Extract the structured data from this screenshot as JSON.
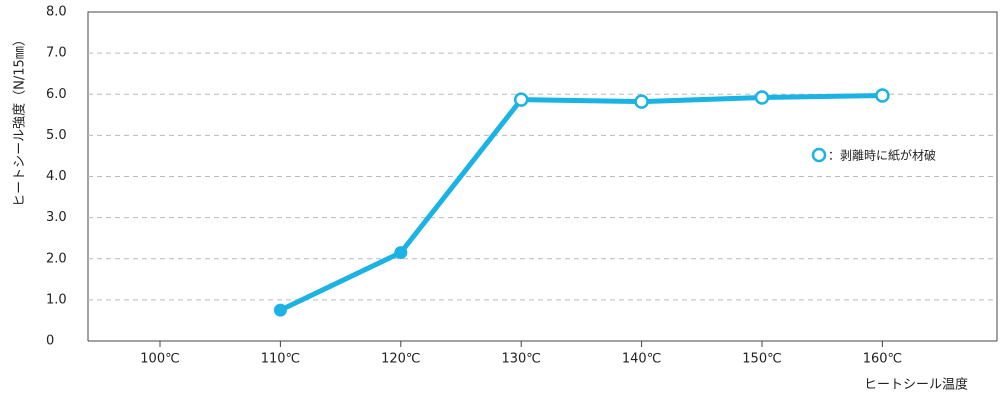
{
  "chart_data": {
    "type": "line",
    "y_label": "ヒートシール強度（N/15㎜）",
    "x_label": "ヒートシール温度",
    "categories": [
      "100℃",
      "110℃",
      "120℃",
      "130℃",
      "140℃",
      "150℃",
      "160℃"
    ],
    "series": [
      {
        "name": "：剥離時に紙が材破",
        "color": "#1ab3e3",
        "values": [
          null,
          0.75,
          2.15,
          5.87,
          5.82,
          5.92,
          5.97
        ],
        "hollow": [
          false,
          false,
          false,
          true,
          true,
          true,
          true
        ]
      }
    ],
    "ylim": [
      0,
      8
    ],
    "yticks": [
      0,
      {
        "value": 1,
        "label": "1.0"
      },
      {
        "value": 2,
        "label": "2.0"
      },
      {
        "value": 3,
        "label": "3.0"
      },
      {
        "value": 4,
        "label": "4.0"
      },
      {
        "value": 5,
        "label": "5.0"
      },
      {
        "value": 6,
        "label": "6.0"
      },
      {
        "value": 7,
        "label": "7.0"
      },
      {
        "value": 8,
        "label": "8.0"
      }
    ],
    "grid": true
  }
}
